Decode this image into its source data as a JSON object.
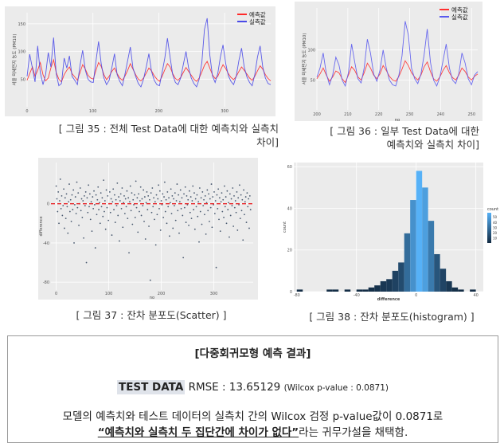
{
  "figures": {
    "fig35": {
      "caption_line1": "[ 그림 35 : 전체 Test Data에 대한 예측치와 실측치",
      "caption_line2": "차이]",
      "ylabel": "서울 미세먼지 농도 (PM10)",
      "legend": [
        "예측값",
        "실측값"
      ]
    },
    "fig36": {
      "caption_line1": "[ 그림 36 : 일부 Test Data에 대한",
      "caption_line2": "예측치와 실측치 차이]",
      "ylabel": "서울 미세먼지 농도 (PM10)",
      "xlabel": "no",
      "legend": [
        "예측값",
        "실측값"
      ]
    },
    "fig37": {
      "caption": "[ 그림 37 : 잔차 분포도(Scatter) ]",
      "ylabel": "difference",
      "xlabel": "no"
    },
    "fig38": {
      "caption": "[ 그림 38 : 잔차 분포도(histogram) ]",
      "ylabel": "count",
      "xlabel": "difference",
      "legend_title": "count"
    }
  },
  "chart_data": [
    {
      "type": "line",
      "id": "fig35",
      "xlim": [
        0,
        370
      ],
      "ylim": [
        0,
        170
      ],
      "x_ticks": [
        0,
        100,
        200,
        300
      ],
      "y_ticks": [
        50,
        100,
        150
      ],
      "series": [
        {
          "name": "예측값",
          "color": "#ff2a2a",
          "values": [
            48,
            60,
            72,
            55,
            66,
            80,
            58,
            47,
            52,
            70,
            85,
            62,
            50,
            45,
            58,
            66,
            72,
            60,
            54,
            48,
            62,
            76,
            68,
            57,
            52,
            50,
            66,
            80,
            73,
            58,
            49,
            55,
            64,
            70,
            60,
            52,
            48,
            56,
            66,
            78,
            68,
            58,
            50,
            47,
            52,
            61,
            70,
            65,
            56,
            50,
            46,
            55,
            67,
            78,
            72,
            60,
            51,
            48,
            53,
            62,
            71,
            64,
            57,
            50,
            46,
            52,
            63,
            75,
            82,
            70,
            58,
            51,
            55,
            66,
            76,
            69,
            60,
            53,
            49,
            55,
            64,
            72,
            66,
            59,
            52,
            48,
            55,
            65,
            74,
            68,
            58,
            51,
            47
          ]
        },
        {
          "name": "실측값",
          "color": "#4a4ae8",
          "values": [
            55,
            95,
            70,
            45,
            110,
            62,
            40,
            58,
            98,
            72,
            125,
            60,
            38,
            42,
            88,
            70,
            92,
            55,
            48,
            40,
            75,
            102,
            66,
            50,
            45,
            44,
            82,
            118,
            78,
            52,
            40,
            48,
            70,
            96,
            58,
            46,
            38,
            60,
            84,
            108,
            70,
            55,
            42,
            36,
            50,
            72,
            96,
            64,
            48,
            40,
            38,
            62,
            88,
            124,
            90,
            58,
            44,
            40,
            52,
            76,
            100,
            70,
            52,
            42,
            36,
            50,
            80,
            140,
            160,
            94,
            56,
            44,
            60,
            90,
            112,
            78,
            56,
            46,
            40,
            56,
            84,
            106,
            72,
            54,
            44,
            38,
            58,
            90,
            110,
            72,
            52,
            42,
            40
          ]
        }
      ]
    },
    {
      "type": "line",
      "id": "fig36",
      "xlim": [
        200,
        252
      ],
      "ylim": [
        0,
        170
      ],
      "x_ticks": [
        200,
        210,
        220,
        230,
        240,
        250
      ],
      "y_ticks": [
        50,
        100
      ],
      "series": [
        {
          "name": "예측값",
          "color": "#ff3030",
          "values": [
            52,
            60,
            70,
            58,
            48,
            55,
            65,
            62,
            52,
            46,
            58,
            72,
            66,
            55,
            50,
            62,
            78,
            70,
            58,
            52,
            60,
            74,
            66,
            56,
            50,
            48,
            56,
            68,
            82,
            74,
            62,
            55,
            50,
            58,
            72,
            80,
            64,
            52,
            48,
            55,
            66,
            74,
            62,
            54,
            50,
            58,
            70,
            64,
            55,
            50,
            56,
            60
          ]
        },
        {
          "name": "실측값",
          "color": "#5a5aee",
          "values": [
            55,
            70,
            95,
            60,
            42,
            58,
            88,
            75,
            50,
            40,
            62,
            110,
            80,
            52,
            45,
            70,
            118,
            95,
            60,
            48,
            66,
            100,
            70,
            50,
            42,
            40,
            58,
            90,
            148,
            125,
            70,
            52,
            44,
            60,
            92,
            135,
            80,
            50,
            40,
            55,
            82,
            110,
            70,
            50,
            44,
            60,
            95,
            78,
            52,
            42,
            58,
            64
          ]
        }
      ]
    },
    {
      "type": "scatter",
      "id": "fig37",
      "xlim": [
        -10,
        375
      ],
      "ylim": [
        -88,
        42
      ],
      "x_ticks": [
        0,
        100,
        200,
        300
      ],
      "y_ticks": [
        0,
        -40,
        -80
      ],
      "reference_line": 0,
      "points_y": [
        18,
        5,
        -8,
        12,
        -20,
        3,
        25,
        -5,
        8,
        -12,
        -2,
        15,
        -25,
        6,
        -15,
        10,
        -3,
        -30,
        2,
        20,
        -8,
        4,
        -18,
        9,
        -6,
        14,
        -40,
        -1,
        7,
        -10,
        22,
        -4,
        11,
        -22,
        0,
        16,
        -7,
        5,
        -14,
        3,
        -35,
        8,
        -2,
        12,
        -60,
        6,
        -9,
        19,
        -3,
        10,
        -16,
        2,
        -28,
        7,
        -5,
        13,
        -1,
        -45,
        9,
        -11,
        4,
        17,
        -6,
        1,
        -20,
        11,
        -3,
        6,
        -13,
        24,
        -8,
        3,
        -26,
        14,
        -4,
        8,
        -17,
        0,
        12,
        -9,
        5,
        -32,
        2,
        15,
        -6,
        9,
        -19,
        4,
        -2,
        21,
        -12,
        7,
        -38,
        3,
        10,
        -5,
        16,
        -24,
        1,
        8,
        -10,
        5,
        -3,
        13,
        -15,
        6,
        -50,
        2,
        18,
        -7,
        11,
        -21,
        4,
        -1,
        9,
        -14,
        23,
        -4,
        6,
        -29,
        10,
        -8,
        3,
        17,
        -12,
        5,
        -2,
        14,
        -18,
        7,
        -36,
        1,
        12,
        -6,
        8,
        -23,
        4,
        -78,
        11,
        -9,
        16,
        -3,
        6,
        -16,
        2,
        -42,
        9,
        -11,
        5,
        19,
        -5,
        13,
        -27,
        3,
        -1,
        10,
        -14,
        7,
        22,
        -8,
        4,
        -20,
        12,
        -3,
        6,
        -33,
        1,
        15,
        -10,
        8,
        -25,
        5,
        -2,
        11,
        -17,
        3,
        20,
        -7,
        9,
        -30,
        2,
        14,
        -5,
        6,
        -12,
        -55,
        10,
        -4,
        17,
        -19,
        8,
        -1,
        4,
        -22,
        13,
        -9,
        7,
        -15,
        3,
        18,
        -6,
        11,
        -26,
        5,
        -3,
        9,
        -13,
        2,
        -39,
        16,
        -8,
        6,
        -21,
        12,
        -2,
        4,
        -11,
        8,
        -31,
        1,
        14,
        -7,
        10,
        -18,
        5,
        -4,
        20,
        -24,
        7,
        -1,
        12,
        -10,
        3,
        -65,
        9,
        -5,
        15,
        -16,
        6,
        -28,
        2,
        11,
        -8,
        4,
        -14,
        18,
        -3,
        7,
        -20,
        13,
        -6,
        1,
        -34,
        10,
        -12,
        5,
        -2,
        16,
        -23,
        8,
        -4,
        3,
        -9,
        12,
        -27,
        6,
        -1,
        19,
        -15,
        9,
        -7,
        4,
        -37,
        14,
        -11,
        2,
        7,
        -19,
        11,
        -3,
        5,
        -25,
        8,
        -6
      ]
    },
    {
      "type": "bar",
      "id": "fig38",
      "xlim": [
        -82,
        45
      ],
      "ylim": [
        0,
        62
      ],
      "x_ticks": [
        -80,
        -40,
        0,
        40
      ],
      "y_ticks": [
        0,
        20,
        40,
        60
      ],
      "bins": [
        -80,
        -76,
        -72,
        -68,
        -64,
        -60,
        -56,
        -52,
        -48,
        -44,
        -40,
        -36,
        -32,
        -28,
        -24,
        -20,
        -16,
        -12,
        -8,
        -4,
        0,
        4,
        8,
        12,
        16,
        20,
        24,
        28,
        32,
        36
      ],
      "values": [
        1,
        0,
        0,
        0,
        0,
        1,
        1,
        0,
        1,
        0,
        1,
        1,
        2,
        3,
        5,
        6,
        10,
        14,
        28,
        44,
        58,
        50,
        34,
        18,
        11,
        5,
        2,
        1,
        0,
        1
      ]
    }
  ],
  "result": {
    "title": "[다중회귀모형 예측 결과]",
    "label": "TEST DATA",
    "rmse": "RMSE : 13.65129",
    "wilcox": "(Wilcox  p-value  : 0.0871)",
    "line2_part1": "모델의 예측치와 테스트 데이터의 실측치 간의 Wilcox 검정 p-value값이 0.0871로",
    "line3_emph": "“예측치와 실측치 두 집단간에 차이가 없다”",
    "line3_tail": "라는 귀무가설을 채택함."
  }
}
